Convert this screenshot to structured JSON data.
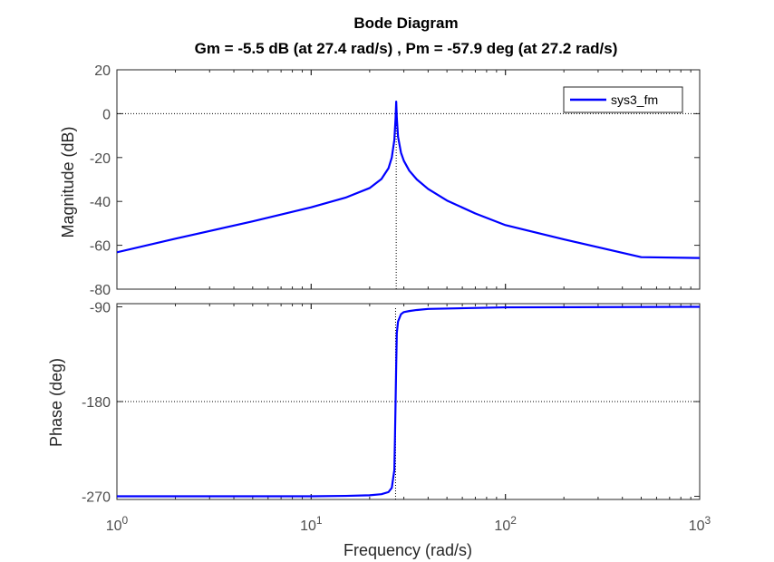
{
  "chart_data": {
    "type": "line",
    "title": "Bode Diagram",
    "subtitle": "Gm = -5.5 dB (at 27.4 rad/s) ,  Pm = -57.9 deg (at 27.2 rad/s)",
    "xlabel": "Frequency  (rad/s)",
    "xscale": "log",
    "xlim": [
      1,
      1000
    ],
    "x_ticks": [
      {
        "value": 1,
        "base": "10",
        "exp": "0"
      },
      {
        "value": 10,
        "base": "10",
        "exp": "1"
      },
      {
        "value": 100,
        "base": "10",
        "exp": "2"
      },
      {
        "value": 1000,
        "base": "10",
        "exp": "3"
      }
    ],
    "legend": {
      "entries": [
        "sys3_fm"
      ],
      "placement": "top-right"
    },
    "colors": {
      "series": "#0000ff",
      "reference": "#000000"
    },
    "panels": [
      {
        "name": "magnitude",
        "ylabel": "Magnitude (dB)",
        "ylim": [
          -80,
          20
        ],
        "yticks": [
          -80,
          -60,
          -40,
          -20,
          0,
          20
        ],
        "ytick_labels": [
          "-80",
          "-60",
          "-40",
          "-20",
          "0",
          "20"
        ],
        "reference_lines": [
          {
            "orientation": "horizontal",
            "value": 0,
            "style": "dotted"
          },
          {
            "orientation": "vertical",
            "value": 27.4,
            "from": -80,
            "to": 5.5,
            "style": "dotted"
          }
        ],
        "series": [
          {
            "name": "sys3_fm",
            "x": [
              1,
              2,
              5,
              10,
              15,
              20,
              23,
              25,
              26,
              26.8,
              27.2,
              27.4,
              27.6,
              28,
              29,
              30,
              32,
              35,
              40,
              50,
              70,
              100,
              200,
              500,
              1000
            ],
            "y": [
              -63.2,
              -57.0,
              -49.1,
              -42.7,
              -38.3,
              -33.9,
              -29.8,
              -24.9,
              -20.0,
              -12.0,
              -2.0,
              5.5,
              -2.0,
              -10.5,
              -17.8,
              -21.5,
              -26.0,
              -30.0,
              -34.3,
              -39.6,
              -45.5,
              -50.8,
              -57.3,
              -65.4,
              -65.8
            ]
          }
        ]
      },
      {
        "name": "phase",
        "ylabel": "Phase (deg)",
        "ylim": [
          -273,
          -87
        ],
        "yticks": [
          -270,
          -180,
          -90
        ],
        "ytick_labels": [
          "-270",
          "-180",
          "-90"
        ],
        "reference_lines": [
          {
            "orientation": "horizontal",
            "value": -180,
            "style": "dotted"
          },
          {
            "orientation": "vertical",
            "value": 27.2,
            "from": -273,
            "to": -90,
            "style": "dotted"
          }
        ],
        "series": [
          {
            "name": "sys3_fm",
            "x": [
              1,
              10,
              15,
              20,
              23,
              25,
              26,
              26.8,
              27.0,
              27.2,
              27.4,
              27.6,
              28,
              29,
              30,
              32,
              35,
              40,
              100,
              1000
            ],
            "y": [
              -270,
              -270,
              -269.6,
              -269,
              -268,
              -266,
              -262,
              -245,
              -215,
              -180,
              -145,
              -115,
              -104,
              -97,
              -95,
              -94,
              -93,
              -92,
              -90.5,
              -90
            ]
          }
        ]
      }
    ]
  }
}
